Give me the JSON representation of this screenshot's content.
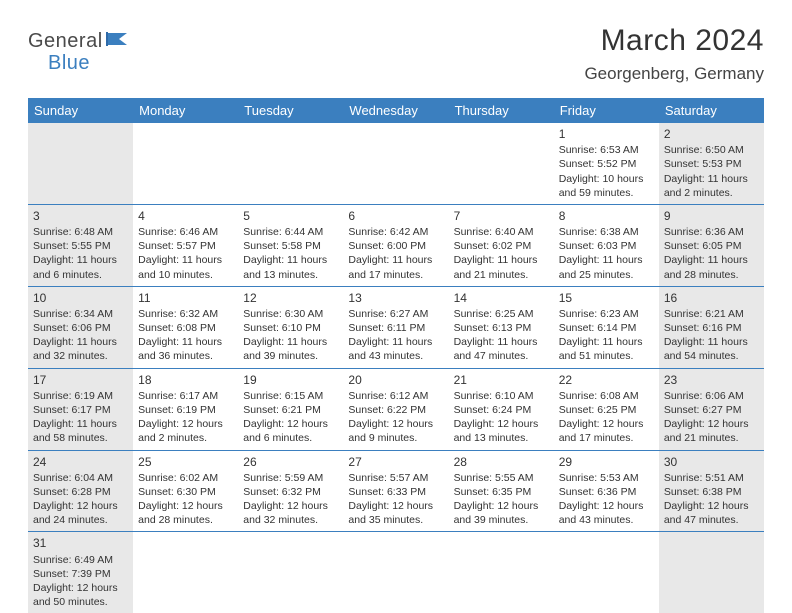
{
  "logo": {
    "part1": "General",
    "part2": "Blue"
  },
  "title": "March 2024",
  "location": "Georgenberg, Germany",
  "colors": {
    "header_bg": "#3b7fbf",
    "header_fg": "#ffffff",
    "weekend_bg": "#e8e8e8",
    "row_border": "#3b7fbf",
    "text": "#333333",
    "logo_gray": "#4a4a4a",
    "logo_blue": "#3b7fbf"
  },
  "day_headers": [
    "Sunday",
    "Monday",
    "Tuesday",
    "Wednesday",
    "Thursday",
    "Friday",
    "Saturday"
  ],
  "weeks": [
    [
      null,
      null,
      null,
      null,
      null,
      {
        "n": "1",
        "sunrise": "6:53 AM",
        "sunset": "5:52 PM",
        "daylight": "10 hours and 59 minutes."
      },
      {
        "n": "2",
        "sunrise": "6:50 AM",
        "sunset": "5:53 PM",
        "daylight": "11 hours and 2 minutes."
      }
    ],
    [
      {
        "n": "3",
        "sunrise": "6:48 AM",
        "sunset": "5:55 PM",
        "daylight": "11 hours and 6 minutes."
      },
      {
        "n": "4",
        "sunrise": "6:46 AM",
        "sunset": "5:57 PM",
        "daylight": "11 hours and 10 minutes."
      },
      {
        "n": "5",
        "sunrise": "6:44 AM",
        "sunset": "5:58 PM",
        "daylight": "11 hours and 13 minutes."
      },
      {
        "n": "6",
        "sunrise": "6:42 AM",
        "sunset": "6:00 PM",
        "daylight": "11 hours and 17 minutes."
      },
      {
        "n": "7",
        "sunrise": "6:40 AM",
        "sunset": "6:02 PM",
        "daylight": "11 hours and 21 minutes."
      },
      {
        "n": "8",
        "sunrise": "6:38 AM",
        "sunset": "6:03 PM",
        "daylight": "11 hours and 25 minutes."
      },
      {
        "n": "9",
        "sunrise": "6:36 AM",
        "sunset": "6:05 PM",
        "daylight": "11 hours and 28 minutes."
      }
    ],
    [
      {
        "n": "10",
        "sunrise": "6:34 AM",
        "sunset": "6:06 PM",
        "daylight": "11 hours and 32 minutes."
      },
      {
        "n": "11",
        "sunrise": "6:32 AM",
        "sunset": "6:08 PM",
        "daylight": "11 hours and 36 minutes."
      },
      {
        "n": "12",
        "sunrise": "6:30 AM",
        "sunset": "6:10 PM",
        "daylight": "11 hours and 39 minutes."
      },
      {
        "n": "13",
        "sunrise": "6:27 AM",
        "sunset": "6:11 PM",
        "daylight": "11 hours and 43 minutes."
      },
      {
        "n": "14",
        "sunrise": "6:25 AM",
        "sunset": "6:13 PM",
        "daylight": "11 hours and 47 minutes."
      },
      {
        "n": "15",
        "sunrise": "6:23 AM",
        "sunset": "6:14 PM",
        "daylight": "11 hours and 51 minutes."
      },
      {
        "n": "16",
        "sunrise": "6:21 AM",
        "sunset": "6:16 PM",
        "daylight": "11 hours and 54 minutes."
      }
    ],
    [
      {
        "n": "17",
        "sunrise": "6:19 AM",
        "sunset": "6:17 PM",
        "daylight": "11 hours and 58 minutes."
      },
      {
        "n": "18",
        "sunrise": "6:17 AM",
        "sunset": "6:19 PM",
        "daylight": "12 hours and 2 minutes."
      },
      {
        "n": "19",
        "sunrise": "6:15 AM",
        "sunset": "6:21 PM",
        "daylight": "12 hours and 6 minutes."
      },
      {
        "n": "20",
        "sunrise": "6:12 AM",
        "sunset": "6:22 PM",
        "daylight": "12 hours and 9 minutes."
      },
      {
        "n": "21",
        "sunrise": "6:10 AM",
        "sunset": "6:24 PM",
        "daylight": "12 hours and 13 minutes."
      },
      {
        "n": "22",
        "sunrise": "6:08 AM",
        "sunset": "6:25 PM",
        "daylight": "12 hours and 17 minutes."
      },
      {
        "n": "23",
        "sunrise": "6:06 AM",
        "sunset": "6:27 PM",
        "daylight": "12 hours and 21 minutes."
      }
    ],
    [
      {
        "n": "24",
        "sunrise": "6:04 AM",
        "sunset": "6:28 PM",
        "daylight": "12 hours and 24 minutes."
      },
      {
        "n": "25",
        "sunrise": "6:02 AM",
        "sunset": "6:30 PM",
        "daylight": "12 hours and 28 minutes."
      },
      {
        "n": "26",
        "sunrise": "5:59 AM",
        "sunset": "6:32 PM",
        "daylight": "12 hours and 32 minutes."
      },
      {
        "n": "27",
        "sunrise": "5:57 AM",
        "sunset": "6:33 PM",
        "daylight": "12 hours and 35 minutes."
      },
      {
        "n": "28",
        "sunrise": "5:55 AM",
        "sunset": "6:35 PM",
        "daylight": "12 hours and 39 minutes."
      },
      {
        "n": "29",
        "sunrise": "5:53 AM",
        "sunset": "6:36 PM",
        "daylight": "12 hours and 43 minutes."
      },
      {
        "n": "30",
        "sunrise": "5:51 AM",
        "sunset": "6:38 PM",
        "daylight": "12 hours and 47 minutes."
      }
    ],
    [
      {
        "n": "31",
        "sunrise": "6:49 AM",
        "sunset": "7:39 PM",
        "daylight": "12 hours and 50 minutes."
      },
      null,
      null,
      null,
      null,
      null,
      null
    ]
  ]
}
